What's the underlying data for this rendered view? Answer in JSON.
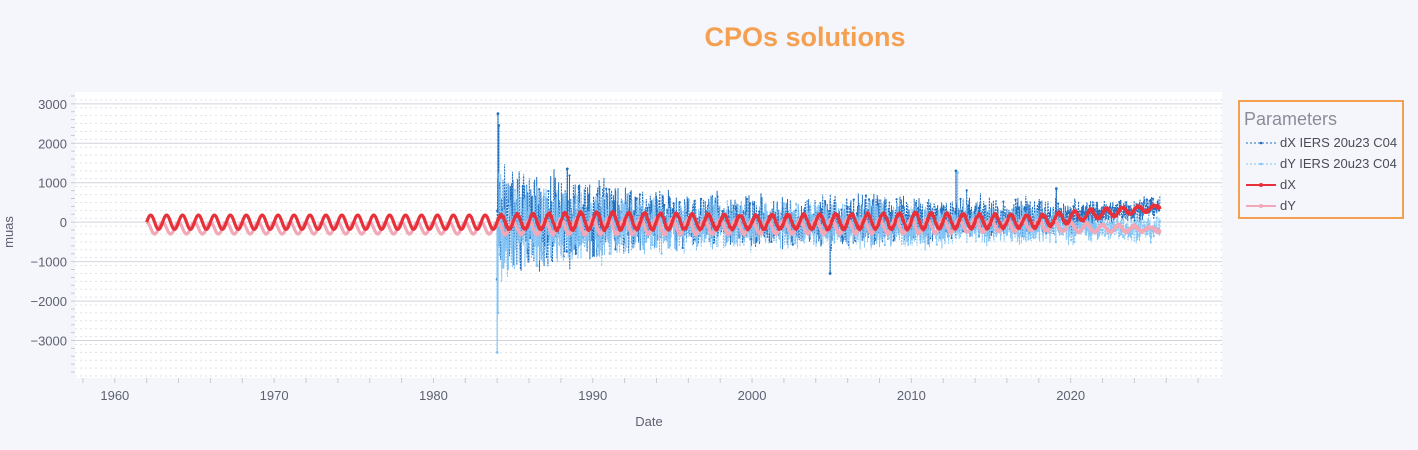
{
  "chart_data": {
    "type": "line",
    "title": "CPOs solutions",
    "xlabel": "Date",
    "ylabel": "muas",
    "x_range": [
      1957.5,
      2029.5
    ],
    "y_range": [
      -3950,
      3300
    ],
    "x_ticks": [
      1960,
      1970,
      1980,
      1990,
      2000,
      2010,
      2020
    ],
    "x_tick_labels": [
      "1960",
      "1970",
      "1980",
      "1990",
      "2000",
      "2010",
      "2020"
    ],
    "y_ticks": [
      3000,
      2000,
      1000,
      0,
      -1000,
      -2000,
      -3000
    ],
    "y_tick_labels": [
      "3000",
      "2000",
      "1000",
      "0",
      "−1000",
      "−2000",
      "−3000"
    ],
    "grid": true,
    "minor_grid": true,
    "legend": {
      "title": "Parameters",
      "placement": "right",
      "border_color": "#f5a050"
    },
    "series": [
      {
        "name": "dX IERS 20u23 C04",
        "color": "#1f6fc0",
        "style": "dashed-markers",
        "x_start": 1984.0,
        "x_end": 2025.6,
        "envelope": [
          [
            1984.0,
            -950,
            1300
          ],
          [
            1986.0,
            -1000,
            1100
          ],
          [
            1988.0,
            -900,
            1000
          ],
          [
            1990.0,
            -750,
            900
          ],
          [
            1993.0,
            -650,
            700
          ],
          [
            1996.0,
            -550,
            600
          ],
          [
            2000.0,
            -500,
            560
          ],
          [
            2005.0,
            -500,
            560
          ],
          [
            2010.0,
            -450,
            600
          ],
          [
            2015.0,
            -350,
            550
          ],
          [
            2020.0,
            -200,
            520
          ],
          [
            2025.6,
            150,
            600
          ]
        ],
        "spikes": [
          {
            "x": 1984.05,
            "y": 2750
          },
          {
            "x": 1984.1,
            "y": 2450
          },
          {
            "x": 1984.0,
            "y": -1450
          },
          {
            "x": 2004.9,
            "y": -1300
          },
          {
            "x": 2012.8,
            "y": 1300
          },
          {
            "x": 1988.4,
            "y": 1350
          },
          {
            "x": 2019.1,
            "y": 850
          }
        ]
      },
      {
        "name": "dY IERS 20u23 C04",
        "color": "#82c4f5",
        "style": "dashed-markers",
        "x_start": 1984.0,
        "x_end": 2025.6,
        "envelope": [
          [
            1984.0,
            -1300,
            950
          ],
          [
            1986.0,
            -1100,
            900
          ],
          [
            1988.0,
            -1000,
            800
          ],
          [
            1990.0,
            -850,
            650
          ],
          [
            1993.0,
            -700,
            550
          ],
          [
            1996.0,
            -650,
            500
          ],
          [
            2000.0,
            -600,
            450
          ],
          [
            2005.0,
            -550,
            450
          ],
          [
            2010.0,
            -600,
            400
          ],
          [
            2015.0,
            -500,
            350
          ],
          [
            2020.0,
            -450,
            250
          ],
          [
            2025.6,
            -450,
            50
          ]
        ],
        "spikes": [
          {
            "x": 1984.0,
            "y": -3300
          },
          {
            "x": 1984.05,
            "y": -2300
          },
          {
            "x": 2012.9,
            "y": 1250
          },
          {
            "x": 1986.5,
            "y": -1100
          }
        ]
      },
      {
        "name": "dX",
        "color": "#e8303a",
        "style": "solid-markers",
        "x_start": 1962.0,
        "x_end": 2025.6,
        "period_years": 1.0,
        "amplitude": [
          [
            1962,
            180
          ],
          [
            1984,
            180
          ],
          [
            1990,
            220
          ],
          [
            2000,
            170
          ],
          [
            2010,
            200
          ],
          [
            2020,
            140
          ],
          [
            2025.6,
            60
          ]
        ],
        "offset": [
          [
            1962,
            0
          ],
          [
            1984,
            0
          ],
          [
            1990,
            30
          ],
          [
            2000,
            0
          ],
          [
            2010,
            30
          ],
          [
            2018,
            20
          ],
          [
            2021,
            180
          ],
          [
            2025.6,
            380
          ]
        ]
      },
      {
        "name": "dY",
        "color": "#f2a8b6",
        "style": "solid-markers",
        "x_start": 1962.0,
        "x_end": 2025.6,
        "period_years": 1.0,
        "amplitude": [
          [
            1962,
            150
          ],
          [
            1984,
            150
          ],
          [
            1990,
            200
          ],
          [
            2000,
            170
          ],
          [
            2010,
            180
          ],
          [
            2020,
            120
          ],
          [
            2025.6,
            50
          ]
        ],
        "offset": [
          [
            1962,
            -150
          ],
          [
            1984,
            -150
          ],
          [
            1990,
            -100
          ],
          [
            2000,
            -120
          ],
          [
            2010,
            -100
          ],
          [
            2018,
            -80
          ],
          [
            2021,
            -150
          ],
          [
            2025.6,
            -180
          ]
        ]
      }
    ]
  }
}
